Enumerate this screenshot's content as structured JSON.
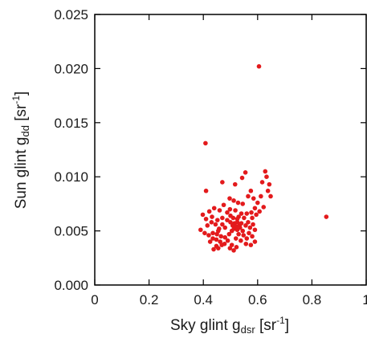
{
  "chart_data": {
    "type": "scatter",
    "title": "",
    "xlabel": {
      "prefix": "Sky glint g",
      "sub": "dsr",
      "mid": " [sr",
      "sup": "-1",
      "suffix": "]"
    },
    "ylabel": {
      "prefix": "Sun glint g",
      "sub": "dd",
      "mid": " [sr",
      "sup": "-1",
      "suffix": "]"
    },
    "xlim": [
      0,
      1
    ],
    "ylim": [
      0,
      0.025
    ],
    "x_ticks": [
      "0",
      "0.2",
      "0.4",
      "0.6",
      "0.8",
      "1"
    ],
    "y_ticks": [
      "0.000",
      "0.005",
      "0.010",
      "0.015",
      "0.020",
      "0.025"
    ],
    "x_tick_values": [
      0,
      0.2,
      0.4,
      0.6,
      0.8,
      1.0
    ],
    "y_tick_values": [
      0,
      0.005,
      0.01,
      0.015,
      0.02,
      0.025
    ],
    "grid": false,
    "marker_color": "#e31a1c",
    "series": [
      {
        "points": [
          [
            0.605,
            0.0202
          ],
          [
            0.408,
            0.0131
          ],
          [
            0.853,
            0.0063
          ],
          [
            0.41,
            0.0087
          ],
          [
            0.628,
            0.0105
          ],
          [
            0.633,
            0.01
          ],
          [
            0.555,
            0.0104
          ],
          [
            0.543,
            0.0099
          ],
          [
            0.617,
            0.0095
          ],
          [
            0.643,
            0.0093
          ],
          [
            0.638,
            0.0087
          ],
          [
            0.648,
            0.0082
          ],
          [
            0.612,
            0.0082
          ],
          [
            0.575,
            0.0087
          ],
          [
            0.565,
            0.0082
          ],
          [
            0.585,
            0.008
          ],
          [
            0.6,
            0.0076
          ],
          [
            0.622,
            0.0072
          ],
          [
            0.59,
            0.0071
          ],
          [
            0.607,
            0.0068
          ],
          [
            0.577,
            0.0067
          ],
          [
            0.595,
            0.0065
          ],
          [
            0.58,
            0.0062
          ],
          [
            0.47,
            0.0095
          ],
          [
            0.517,
            0.0093
          ],
          [
            0.497,
            0.008
          ],
          [
            0.512,
            0.0078
          ],
          [
            0.528,
            0.0076
          ],
          [
            0.545,
            0.0075
          ],
          [
            0.475,
            0.0074
          ],
          [
            0.498,
            0.007
          ],
          [
            0.518,
            0.0069
          ],
          [
            0.46,
            0.0069
          ],
          [
            0.44,
            0.0071
          ],
          [
            0.422,
            0.0068
          ],
          [
            0.398,
            0.0065
          ],
          [
            0.41,
            0.0061
          ],
          [
            0.432,
            0.0063
          ],
          [
            0.452,
            0.006
          ],
          [
            0.47,
            0.0062
          ],
          [
            0.488,
            0.006
          ],
          [
            0.51,
            0.0062
          ],
          [
            0.53,
            0.0063
          ],
          [
            0.55,
            0.0062
          ],
          [
            0.56,
            0.0066
          ],
          [
            0.5,
            0.0058
          ],
          [
            0.515,
            0.0057
          ],
          [
            0.525,
            0.0058
          ],
          [
            0.508,
            0.0055
          ],
          [
            0.52,
            0.0054
          ],
          [
            0.533,
            0.0055
          ],
          [
            0.54,
            0.0057
          ],
          [
            0.513,
            0.0052
          ],
          [
            0.525,
            0.0051
          ],
          [
            0.505,
            0.005
          ],
          [
            0.535,
            0.0053
          ],
          [
            0.545,
            0.005
          ],
          [
            0.556,
            0.0055
          ],
          [
            0.565,
            0.0058
          ],
          [
            0.572,
            0.0053
          ],
          [
            0.583,
            0.0056
          ],
          [
            0.59,
            0.0051
          ],
          [
            0.568,
            0.0048
          ],
          [
            0.548,
            0.0046
          ],
          [
            0.56,
            0.0043
          ],
          [
            0.58,
            0.0045
          ],
          [
            0.59,
            0.004
          ],
          [
            0.575,
            0.0037
          ],
          [
            0.557,
            0.0038
          ],
          [
            0.538,
            0.0041
          ],
          [
            0.52,
            0.0043
          ],
          [
            0.53,
            0.0047
          ],
          [
            0.495,
            0.0047
          ],
          [
            0.48,
            0.0053
          ],
          [
            0.47,
            0.0056
          ],
          [
            0.458,
            0.0052
          ],
          [
            0.445,
            0.0056
          ],
          [
            0.43,
            0.0058
          ],
          [
            0.415,
            0.0055
          ],
          [
            0.39,
            0.0051
          ],
          [
            0.405,
            0.0048
          ],
          [
            0.42,
            0.0046
          ],
          [
            0.435,
            0.0048
          ],
          [
            0.45,
            0.0047
          ],
          [
            0.465,
            0.0045
          ],
          [
            0.48,
            0.0044
          ],
          [
            0.49,
            0.0041
          ],
          [
            0.478,
            0.0038
          ],
          [
            0.462,
            0.004
          ],
          [
            0.448,
            0.0042
          ],
          [
            0.435,
            0.0043
          ],
          [
            0.448,
            0.0036
          ],
          [
            0.438,
            0.0033
          ],
          [
            0.455,
            0.0034
          ],
          [
            0.468,
            0.0037
          ],
          [
            0.505,
            0.0037
          ],
          [
            0.512,
            0.0032
          ],
          [
            0.498,
            0.0034
          ],
          [
            0.522,
            0.0035
          ],
          [
            0.425,
            0.004
          ],
          [
            0.455,
            0.005
          ],
          [
            0.5,
            0.0064
          ],
          [
            0.525,
            0.0061
          ],
          [
            0.54,
            0.0066
          ],
          [
            0.488,
            0.0067
          ]
        ]
      }
    ]
  }
}
